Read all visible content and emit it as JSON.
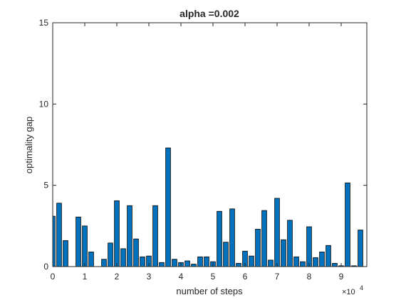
{
  "chart_data": {
    "type": "bar",
    "title": "alpha =0.002",
    "xlabel": "number of steps",
    "ylabel": "optimality gap",
    "x_multiplier_label": "×10",
    "x_multiplier_exp": "4",
    "xlim": [
      0,
      98000
    ],
    "ylim": [
      0,
      15
    ],
    "bar_width": 1500,
    "bar_color": "#0072BD",
    "xticks": [
      0,
      1,
      2,
      3,
      4,
      5,
      6,
      7,
      8,
      9
    ],
    "xtick_labels": [
      "0",
      "1",
      "2",
      "3",
      "4",
      "5",
      "6",
      "7",
      "8",
      "9"
    ],
    "yticks": [
      0,
      5,
      10,
      15
    ],
    "ytick_labels": [
      "0",
      "5",
      "10",
      "15"
    ],
    "grid": false,
    "x": [
      0,
      2000,
      4000,
      8000,
      10000,
      12000,
      16000,
      18000,
      20000,
      22000,
      24000,
      26000,
      28000,
      30000,
      32000,
      34000,
      36000,
      38000,
      40000,
      42000,
      44000,
      46000,
      48000,
      50000,
      52000,
      54000,
      56000,
      58000,
      60000,
      62000,
      64000,
      66000,
      68000,
      70000,
      72000,
      74000,
      76000,
      78000,
      80000,
      82000,
      84000,
      86000,
      88000,
      90000,
      92000,
      94000,
      96000
    ],
    "values": [
      3.1,
      3.9,
      1.6,
      3.05,
      2.5,
      0.9,
      0.45,
      1.45,
      4.05,
      1.1,
      3.75,
      1.7,
      0.6,
      0.65,
      3.75,
      0.25,
      7.3,
      0.45,
      0.25,
      0.35,
      0.15,
      0.6,
      0.6,
      0.3,
      3.4,
      1.5,
      3.55,
      0.2,
      0.95,
      0.65,
      2.3,
      3.45,
      0.4,
      4.2,
      1.65,
      2.85,
      0.6,
      0.3,
      2.45,
      0.55,
      0.9,
      1.3,
      0.2,
      0.05,
      5.15,
      0.05,
      2.25
    ]
  }
}
